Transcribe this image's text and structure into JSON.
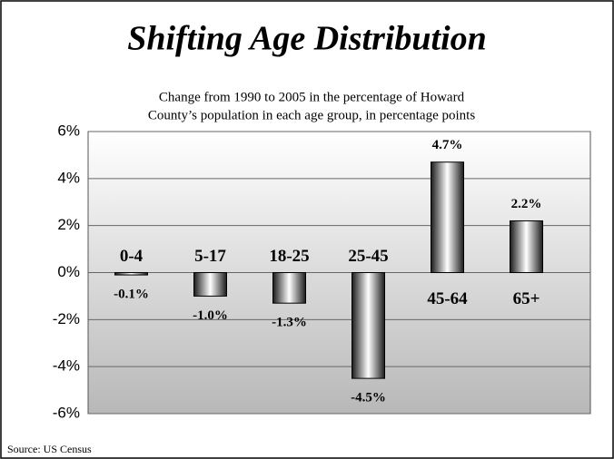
{
  "chart_data": {
    "type": "bar",
    "title": "Shifting Age Distribution",
    "subtitle": [
      "Change from 1990 to 2005 in the percentage of Howard",
      "County’s population in each age group, in percentage points"
    ],
    "source": "Source:  US Census",
    "categories": [
      "0-4",
      "5-17",
      "18-25",
      "25-45",
      "45-64",
      "65+"
    ],
    "values": [
      -0.1,
      -1.0,
      -1.3,
      -4.5,
      4.7,
      2.2
    ],
    "value_labels": [
      "-0.1%",
      "-1.0%",
      "-1.3%",
      "-4.5%",
      "4.7%",
      "2.2%"
    ],
    "ylim": [
      -6,
      6
    ],
    "yticks": [
      {
        "value": -6,
        "label": "-6%"
      },
      {
        "value": -4,
        "label": "-4%"
      },
      {
        "value": -2,
        "label": "-2%"
      },
      {
        "value": 0,
        "label": "0%"
      },
      {
        "value": 2,
        "label": "2%"
      },
      {
        "value": 4,
        "label": "4%"
      },
      {
        "value": 6,
        "label": "6%"
      }
    ],
    "grid": true
  }
}
